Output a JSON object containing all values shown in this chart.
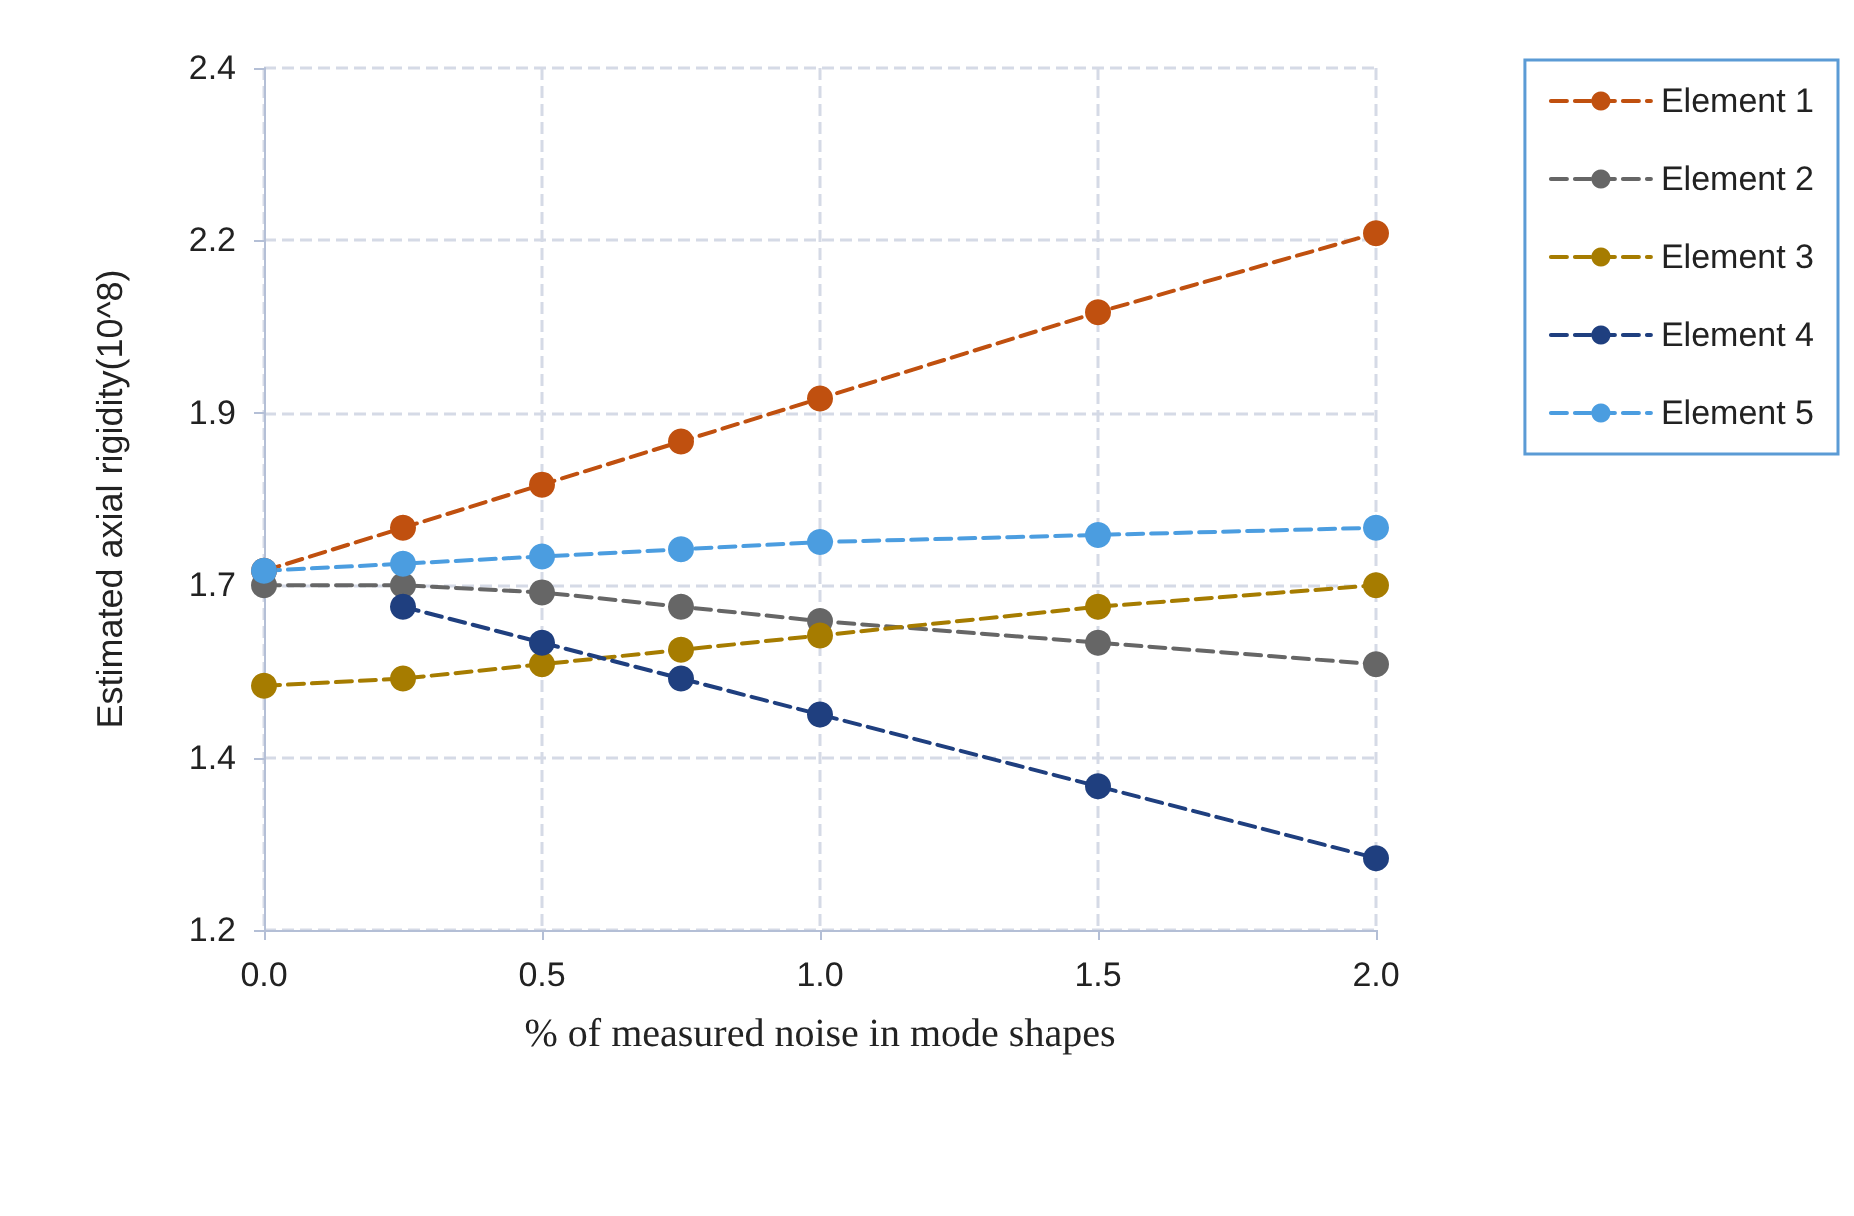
{
  "chart_data": {
    "type": "line",
    "xlabel": "% of measured noise in mode shapes",
    "ylabel": "Estimated axial rigidity(10^8)",
    "x": [
      0,
      0.25,
      0.5,
      0.75,
      1.0,
      1.5,
      2.0
    ],
    "series": [
      {
        "name": "Element 1",
        "color": "#c0500f",
        "values": [
          1.7,
          1.76,
          1.82,
          1.88,
          1.94,
          2.06,
          2.17
        ]
      },
      {
        "name": "Element 2",
        "color": "#666666",
        "values": [
          1.68,
          1.68,
          1.67,
          1.65,
          1.63,
          1.6,
          1.57
        ]
      },
      {
        "name": "Element 3",
        "color": "#a67c00",
        "values": [
          1.54,
          1.55,
          1.57,
          1.59,
          1.61,
          1.65,
          1.68
        ]
      },
      {
        "name": "Element 4",
        "color": "#1f3f7f",
        "values": [
          null,
          1.65,
          1.6,
          1.55,
          1.5,
          1.4,
          1.3
        ]
      },
      {
        "name": "Element 5",
        "color": "#4b9de0",
        "values": [
          1.7,
          1.71,
          1.72,
          1.73,
          1.74,
          1.75,
          1.76
        ]
      }
    ],
    "xlim": [
      0,
      2
    ],
    "xticks": [
      {
        "value": 0,
        "label": "0.0"
      },
      0.5,
      {
        "value": 1,
        "label": "1.0"
      },
      1.5,
      {
        "value": 2,
        "label": "2.0"
      }
    ],
    "ylim": [
      1.2,
      2.4
    ],
    "yticks": [
      1.2,
      {
        "value": 1.44,
        "label": "1.4"
      },
      {
        "value": 1.68,
        "label": "1.7"
      },
      {
        "value": 1.92,
        "label": "1.9"
      },
      {
        "value": 2.16,
        "label": "2.2"
      },
      2.4
    ],
    "grid": true,
    "legend": "right",
    "marker": "circle",
    "line_style": "dashed"
  }
}
